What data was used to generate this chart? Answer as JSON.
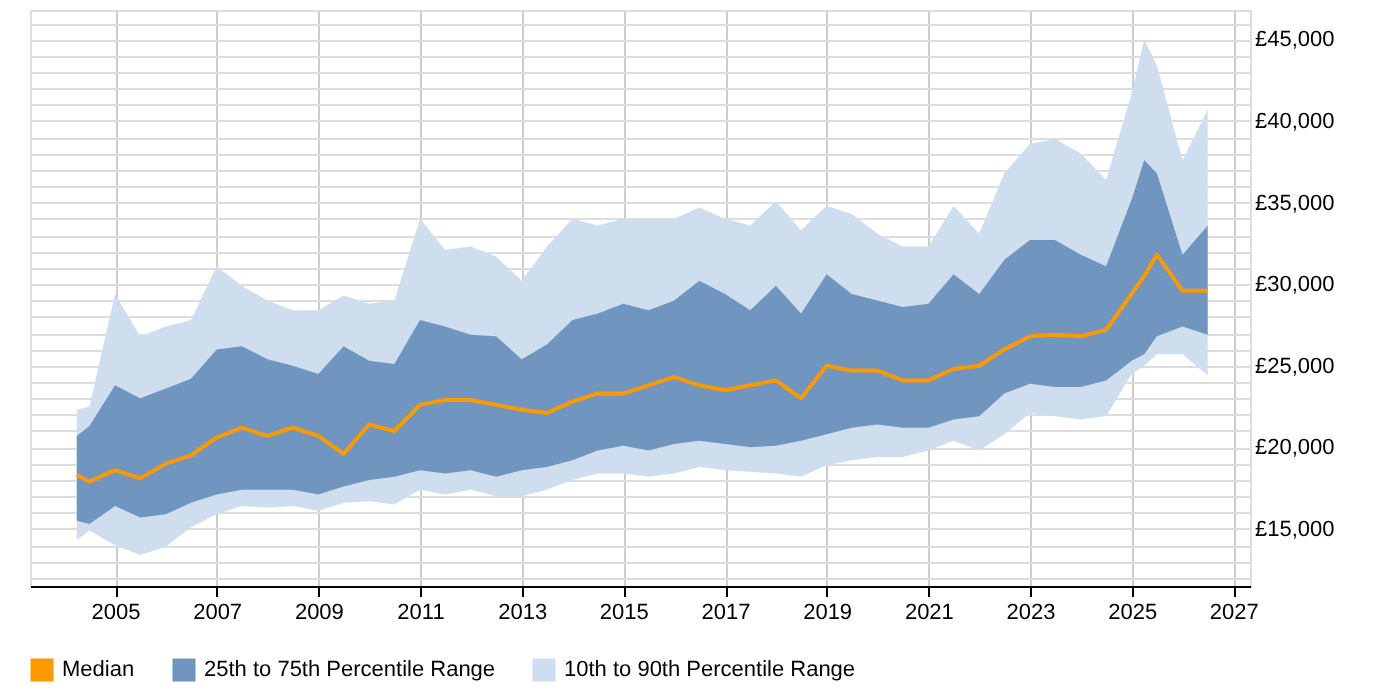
{
  "chart_data": {
    "type": "line",
    "x": [
      "2004-04",
      "2004-07",
      "2005-01",
      "2005-07",
      "2006-01",
      "2006-07",
      "2007-01",
      "2007-07",
      "2008-01",
      "2008-07",
      "2009-01",
      "2009-07",
      "2010-01",
      "2010-07",
      "2011-01",
      "2011-07",
      "2012-01",
      "2012-07",
      "2013-01",
      "2013-07",
      "2014-01",
      "2014-07",
      "2015-01",
      "2015-07",
      "2016-01",
      "2016-07",
      "2017-01",
      "2017-07",
      "2018-01",
      "2018-07",
      "2019-01",
      "2019-07",
      "2020-01",
      "2020-07",
      "2021-01",
      "2021-07",
      "2022-01",
      "2022-07",
      "2023-01",
      "2023-07",
      "2024-01",
      "2024-07",
      "2025-01",
      "2025-04",
      "2025-07",
      "2026-01",
      "2026-07"
    ],
    "series": [
      {
        "name": "Median",
        "type": "line",
        "color": "#ff9900",
        "values": [
          18300,
          17900,
          18600,
          18100,
          19000,
          19500,
          20600,
          21200,
          20700,
          21200,
          20700,
          19600,
          21400,
          21000,
          22600,
          22900,
          22900,
          22600,
          22300,
          22100,
          22800,
          23300,
          23300,
          23800,
          24300,
          23800,
          23500,
          23800,
          24100,
          23000,
          25000,
          24700,
          24700,
          24100,
          24100,
          24800,
          25000,
          26000,
          26800,
          26900,
          26800,
          27200,
          29400,
          30500,
          31800,
          29600,
          29600
        ]
      },
      {
        "name": "25th to 75th Percentile Range",
        "color": "#7096bf",
        "values": [
          null,
          null,
          null,
          null,
          null,
          null,
          null,
          null,
          null,
          null,
          null,
          null,
          null,
          null,
          null,
          null,
          null,
          null,
          null,
          null,
          null,
          null,
          null,
          null,
          null,
          null,
          null,
          null,
          null,
          null,
          null,
          null,
          null,
          null,
          null,
          null,
          null,
          null,
          null,
          null,
          null,
          null,
          null,
          null,
          null,
          null,
          null
        ],
        "lower": [
          15500,
          15300,
          16400,
          15700,
          15900,
          16600,
          17100,
          17400,
          17400,
          17400,
          17100,
          17600,
          18000,
          18200,
          18600,
          18400,
          18600,
          18200,
          18600,
          18800,
          19200,
          19800,
          20100,
          19800,
          20200,
          20400,
          20200,
          20000,
          20100,
          20400,
          20800,
          21200,
          21400,
          21200,
          21200,
          21700,
          21900,
          23300,
          23900,
          23700,
          23700,
          24100,
          25300,
          25700,
          26800,
          27400,
          26900
        ],
        "upper": [
          20700,
          21300,
          23800,
          23000,
          23600,
          24200,
          26000,
          26200,
          25400,
          25000,
          24500,
          26200,
          25300,
          25100,
          27800,
          27400,
          26900,
          26800,
          25400,
          26300,
          27800,
          28200,
          28800,
          28400,
          29000,
          30200,
          29400,
          28400,
          29900,
          28200,
          30600,
          29400,
          29000,
          28600,
          28800,
          30600,
          29400,
          31500,
          32700,
          32700,
          31800,
          31100,
          35200,
          37600,
          36800,
          31800,
          33600
        ]
      },
      {
        "name": "10th to 90th Percentile Range",
        "color": "#cfdeee",
        "values": [
          null,
          null,
          null,
          null,
          null,
          null,
          null,
          null,
          null,
          null,
          null,
          null,
          null,
          null,
          null,
          null,
          null,
          null,
          null,
          null,
          null,
          null,
          null,
          null,
          null,
          null,
          null,
          null,
          null,
          null,
          null,
          null,
          null,
          null,
          null,
          null,
          null,
          null,
          null,
          null,
          null,
          null,
          null,
          null,
          null,
          null,
          null
        ],
        "lower": [
          14300,
          14900,
          14000,
          13400,
          13900,
          15100,
          15900,
          16400,
          16300,
          16400,
          16100,
          16600,
          16700,
          16500,
          17400,
          17100,
          17400,
          17000,
          17000,
          17400,
          18000,
          18400,
          18400,
          18200,
          18400,
          18800,
          18600,
          18500,
          18400,
          18200,
          18900,
          19200,
          19400,
          19400,
          19800,
          20400,
          19800,
          20800,
          22100,
          21900,
          21700,
          21900,
          24500,
          25000,
          25700,
          25700,
          24400
        ],
        "upper": [
          22300,
          22500,
          29400,
          26800,
          27400,
          27800,
          31100,
          29900,
          29000,
          28400,
          28400,
          29300,
          28800,
          29000,
          34000,
          32100,
          32300,
          31700,
          30200,
          32300,
          34000,
          33600,
          34000,
          34000,
          34000,
          34700,
          34000,
          33600,
          35100,
          33300,
          34800,
          34300,
          33100,
          32300,
          32300,
          34800,
          33100,
          36800,
          38600,
          38900,
          38000,
          36400,
          41700,
          45000,
          43400,
          37600,
          40700
        ]
      }
    ],
    "xlim": [
      "2003-05",
      "2027-05"
    ],
    "xticks": [
      "2005",
      "2007",
      "2009",
      "2011",
      "2013",
      "2015",
      "2017",
      "2019",
      "2021",
      "2023",
      "2025",
      "2027"
    ],
    "ylim": [
      11500,
      46800
    ],
    "yticks": [
      {
        "value": 12000,
        "label": null
      },
      {
        "value": 13000,
        "label": null
      },
      {
        "value": 14000,
        "label": null
      },
      {
        "value": 15000,
        "label": "£15,000"
      },
      {
        "value": 16000,
        "label": null
      },
      {
        "value": 17000,
        "label": null
      },
      {
        "value": 18000,
        "label": null
      },
      {
        "value": 19000,
        "label": null
      },
      {
        "value": 20000,
        "label": "£20,000"
      },
      {
        "value": 21000,
        "label": null
      },
      {
        "value": 22000,
        "label": null
      },
      {
        "value": 23000,
        "label": null
      },
      {
        "value": 24000,
        "label": null
      },
      {
        "value": 25000,
        "label": "£25,000"
      },
      {
        "value": 26000,
        "label": null
      },
      {
        "value": 27000,
        "label": null
      },
      {
        "value": 28000,
        "label": null
      },
      {
        "value": 29000,
        "label": null
      },
      {
        "value": 30000,
        "label": "£30,000"
      },
      {
        "value": 31000,
        "label": null
      },
      {
        "value": 32000,
        "label": null
      },
      {
        "value": 33000,
        "label": null
      },
      {
        "value": 34000,
        "label": null
      },
      {
        "value": 35000,
        "label": "£35,000"
      },
      {
        "value": 36000,
        "label": null
      },
      {
        "value": 37000,
        "label": null
      },
      {
        "value": 38000,
        "label": null
      },
      {
        "value": 39000,
        "label": null
      },
      {
        "value": 40000,
        "label": "£40,000"
      },
      {
        "value": 41000,
        "label": null
      },
      {
        "value": 42000,
        "label": null
      },
      {
        "value": 43000,
        "label": null
      },
      {
        "value": 44000,
        "label": null
      },
      {
        "value": 45000,
        "label": "£45,000"
      },
      {
        "value": 46000,
        "label": null
      }
    ],
    "grid": true,
    "legend": "bottom",
    "marker": "none",
    "line_style": "solid"
  }
}
